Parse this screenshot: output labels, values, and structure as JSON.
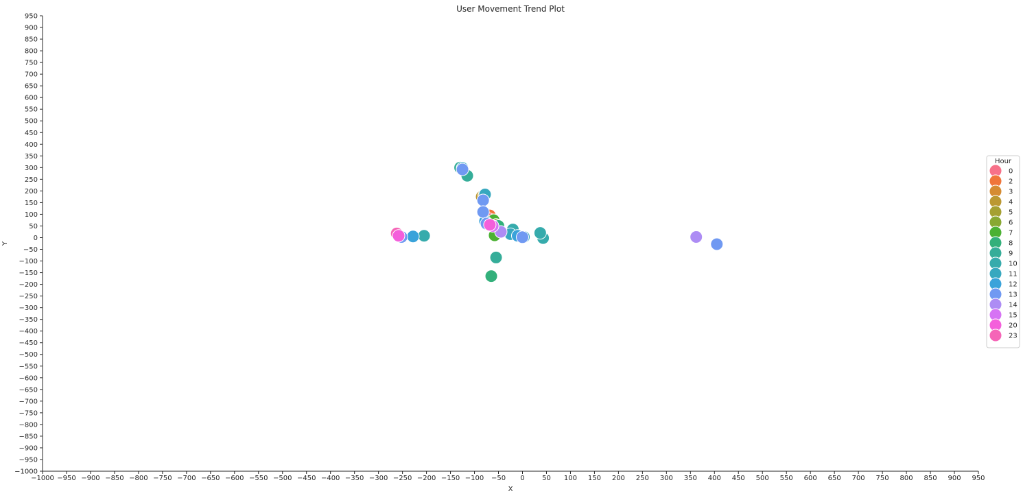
{
  "chart_data": {
    "type": "scatter",
    "title": "User Movement Trend Plot",
    "xlabel": "X",
    "ylabel": "Y",
    "xlim": [
      -1000,
      950
    ],
    "ylim": [
      -1000,
      950
    ],
    "tick_step": 50,
    "grid": false,
    "legend": {
      "title": "Hour",
      "placement": "right",
      "entries": [
        {
          "label": "0",
          "color": "#f77189"
        },
        {
          "label": "2",
          "color": "#f0753a"
        },
        {
          "label": "3",
          "color": "#d58b32"
        },
        {
          "label": "4",
          "color": "#bb9832"
        },
        {
          "label": "5",
          "color": "#a5a032"
        },
        {
          "label": "6",
          "color": "#88a832"
        },
        {
          "label": "7",
          "color": "#4bb133"
        },
        {
          "label": "8",
          "color": "#33b07b"
        },
        {
          "label": "9",
          "color": "#35ad99"
        },
        {
          "label": "10",
          "color": "#36abac"
        },
        {
          "label": "11",
          "color": "#37a8bf"
        },
        {
          "label": "12",
          "color": "#3aa3da"
        },
        {
          "label": "13",
          "color": "#7099f2"
        },
        {
          "label": "14",
          "color": "#ad8cf4"
        },
        {
          "label": "15",
          "color": "#d673f4"
        },
        {
          "label": "20",
          "color": "#f45fdb"
        },
        {
          "label": "23",
          "color": "#f565b7"
        }
      ]
    },
    "points": [
      {
        "x": -85,
        "y": 175,
        "hour": "4"
      },
      {
        "x": -80,
        "y": 180,
        "hour": "3"
      },
      {
        "x": -68,
        "y": 95,
        "hour": "2"
      },
      {
        "x": -70,
        "y": 80,
        "hour": "0"
      },
      {
        "x": -60,
        "y": 75,
        "hour": "7"
      },
      {
        "x": -58,
        "y": 10,
        "hour": "7"
      },
      {
        "x": -55,
        "y": 55,
        "hour": "6"
      },
      {
        "x": -50,
        "y": 50,
        "hour": "8"
      },
      {
        "x": -65,
        "y": -165,
        "hour": "8"
      },
      {
        "x": -55,
        "y": -85,
        "hour": "9"
      },
      {
        "x": -130,
        "y": 300,
        "hour": "9"
      },
      {
        "x": -115,
        "y": 265,
        "hour": "9"
      },
      {
        "x": -20,
        "y": 35,
        "hour": "10"
      },
      {
        "x": 43,
        "y": -2,
        "hour": "10"
      },
      {
        "x": 37,
        "y": 20,
        "hour": "10"
      },
      {
        "x": -205,
        "y": 8,
        "hour": "10"
      },
      {
        "x": -125,
        "y": 298,
        "hour": "11"
      },
      {
        "x": -78,
        "y": 185,
        "hour": "11"
      },
      {
        "x": -25,
        "y": 15,
        "hour": "11"
      },
      {
        "x": 3,
        "y": 3,
        "hour": "11"
      },
      {
        "x": -228,
        "y": 5,
        "hour": "12"
      },
      {
        "x": -10,
        "y": 8,
        "hour": "12"
      },
      {
        "x": -78,
        "y": 70,
        "hour": "12"
      },
      {
        "x": -125,
        "y": 292,
        "hour": "13"
      },
      {
        "x": -82,
        "y": 160,
        "hour": "13"
      },
      {
        "x": -82,
        "y": 110,
        "hour": "13"
      },
      {
        "x": -75,
        "y": 60,
        "hour": "13"
      },
      {
        "x": -252,
        "y": 3,
        "hour": "13"
      },
      {
        "x": 0,
        "y": 2,
        "hour": "13"
      },
      {
        "x": 405,
        "y": -28,
        "hour": "13"
      },
      {
        "x": 362,
        "y": 3,
        "hour": "14"
      },
      {
        "x": -45,
        "y": 25,
        "hour": "14"
      },
      {
        "x": -62,
        "y": 50,
        "hour": "15"
      },
      {
        "x": -68,
        "y": 55,
        "hour": "20"
      },
      {
        "x": -262,
        "y": 18,
        "hour": "23"
      },
      {
        "x": -258,
        "y": 8,
        "hour": "20"
      }
    ]
  }
}
